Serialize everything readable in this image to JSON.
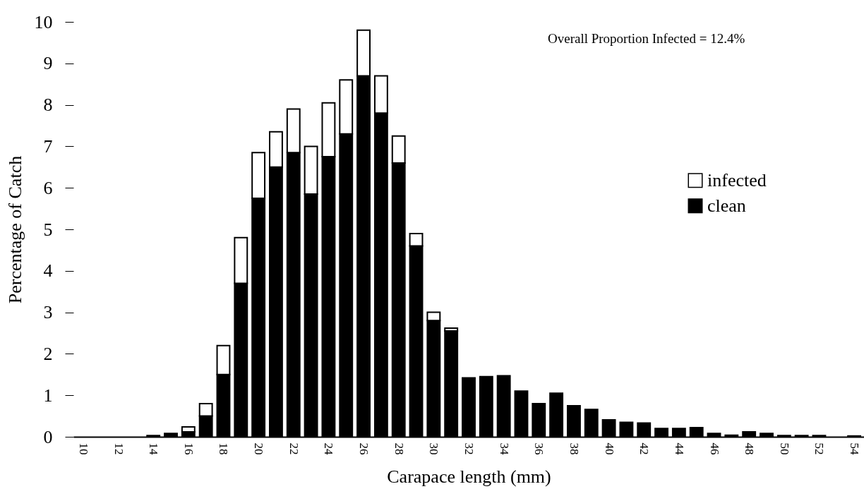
{
  "chart_data": {
    "type": "bar",
    "stacked": true,
    "xlabel": "Carapace length (mm)",
    "ylabel": "Percentage of Catch",
    "categories": [
      "10",
      null,
      "12",
      null,
      "14",
      null,
      "16",
      null,
      "18",
      null,
      "20",
      null,
      "22",
      null,
      "24",
      null,
      "26",
      null,
      "28",
      null,
      "30",
      null,
      "32",
      null,
      "34",
      null,
      "36",
      null,
      "38",
      null,
      "40",
      null,
      "42",
      null,
      "44",
      null,
      "46",
      null,
      "48",
      null,
      "50",
      null,
      "52",
      null,
      "54"
    ],
    "series": [
      {
        "name": "clean",
        "color": "#000000",
        "values": [
          0,
          0,
          0,
          0,
          0.03,
          0.08,
          0.12,
          0.5,
          1.5,
          3.7,
          5.75,
          6.5,
          6.85,
          5.85,
          6.75,
          7.3,
          8.7,
          7.8,
          6.6,
          4.6,
          2.8,
          2.55,
          1.42,
          1.45,
          1.47,
          1.1,
          0.8,
          1.05,
          0.75,
          0.66,
          0.41,
          0.35,
          0.33,
          0.2,
          0.2,
          0.22,
          0.08,
          0.04,
          0.12,
          0.08,
          0.03,
          0.03,
          0.03,
          0,
          0.02
        ]
      },
      {
        "name": "infected",
        "color": "#ffffff",
        "values": [
          0,
          0,
          0,
          0,
          0,
          0,
          0.12,
          0.3,
          0.7,
          1.1,
          1.1,
          0.85,
          1.05,
          1.15,
          1.3,
          1.3,
          1.1,
          0.9,
          0.65,
          0.3,
          0.2,
          0.07,
          0,
          0,
          0,
          0,
          0,
          0,
          0,
          0,
          0,
          0,
          0,
          0,
          0,
          0,
          0,
          0,
          0,
          0,
          0,
          0,
          0,
          0,
          0
        ]
      }
    ],
    "ylim": [
      0,
      10
    ],
    "yticks": [
      0,
      1,
      2,
      3,
      4,
      5,
      6,
      7,
      8,
      9,
      10
    ],
    "legend": "right",
    "annotations": [
      "Overall Proportion Infected = 12.4%"
    ]
  }
}
